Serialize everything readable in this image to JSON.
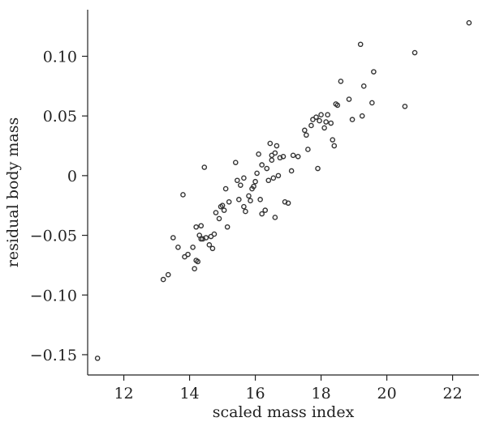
{
  "chart_data": {
    "type": "scatter",
    "title": "",
    "xlabel": "scaled mass index",
    "ylabel": "residual body mass",
    "xlim": [
      10.9,
      22.8
    ],
    "ylim": [
      -0.167,
      0.139
    ],
    "xticks": [
      12,
      14,
      16,
      18,
      20,
      22
    ],
    "yticks": [
      0.1,
      0.05,
      0,
      -0.05,
      -0.1,
      -0.15
    ],
    "ytick_labels": [
      "0.10",
      "0.05",
      "0",
      "−0.05",
      "−0.10",
      "−0.15"
    ],
    "grid": false,
    "series": [
      {
        "x": [
          11.2,
          13.2,
          13.35,
          13.5,
          13.65,
          13.8,
          13.85,
          13.95,
          14.1,
          14.15,
          14.2,
          14.2,
          14.25,
          14.3,
          14.35,
          14.4,
          14.45,
          14.5,
          14.6,
          14.65,
          14.7,
          14.75,
          14.8,
          14.9,
          14.95,
          15.05,
          15.1,
          15.15,
          15.2,
          15.4,
          15.45,
          15.5,
          15.55,
          15.65,
          15.7,
          15.8,
          15.85,
          15.9,
          15.95,
          16.0,
          16.05,
          16.1,
          16.15,
          16.2,
          16.3,
          16.35,
          16.4,
          16.45,
          16.5,
          16.55,
          16.6,
          16.6,
          16.65,
          16.7,
          16.75,
          16.85,
          16.9,
          17.1,
          17.15,
          17.3,
          17.5,
          17.55,
          17.6,
          17.7,
          17.75,
          17.85,
          17.9,
          17.95,
          18.0,
          18.1,
          18.15,
          18.2,
          18.3,
          18.35,
          18.45,
          18.5,
          18.6,
          18.85,
          18.95,
          19.2,
          19.25,
          19.3,
          19.55,
          19.6,
          20.55,
          20.85,
          22.5,
          14.35,
          15.0,
          15.65,
          16.2,
          16.5,
          17.0,
          18.4
        ],
        "y": [
          -0.153,
          -0.087,
          -0.083,
          -0.052,
          -0.06,
          -0.016,
          -0.068,
          -0.066,
          -0.06,
          -0.078,
          -0.071,
          -0.043,
          -0.072,
          -0.05,
          -0.053,
          -0.053,
          0.007,
          -0.052,
          -0.058,
          -0.051,
          -0.061,
          -0.049,
          -0.031,
          -0.036,
          -0.026,
          -0.029,
          -0.011,
          -0.043,
          -0.022,
          0.011,
          -0.004,
          -0.02,
          -0.008,
          -0.002,
          -0.03,
          -0.017,
          -0.021,
          -0.011,
          -0.009,
          -0.005,
          0.002,
          0.018,
          -0.02,
          0.009,
          -0.029,
          0.006,
          -0.004,
          0.027,
          0.017,
          -0.002,
          -0.035,
          0.019,
          0.025,
          0.0,
          0.015,
          0.016,
          -0.022,
          0.004,
          0.017,
          0.016,
          0.038,
          0.034,
          0.022,
          0.042,
          0.047,
          0.049,
          0.006,
          0.046,
          0.051,
          0.04,
          0.045,
          0.051,
          0.044,
          0.03,
          0.06,
          0.059,
          0.079,
          0.064,
          0.047,
          0.11,
          0.05,
          0.075,
          0.061,
          0.087,
          0.058,
          0.103,
          0.128,
          -0.042,
          -0.025,
          -0.026,
          -0.032,
          0.013,
          -0.023,
          0.025
        ]
      }
    ]
  }
}
